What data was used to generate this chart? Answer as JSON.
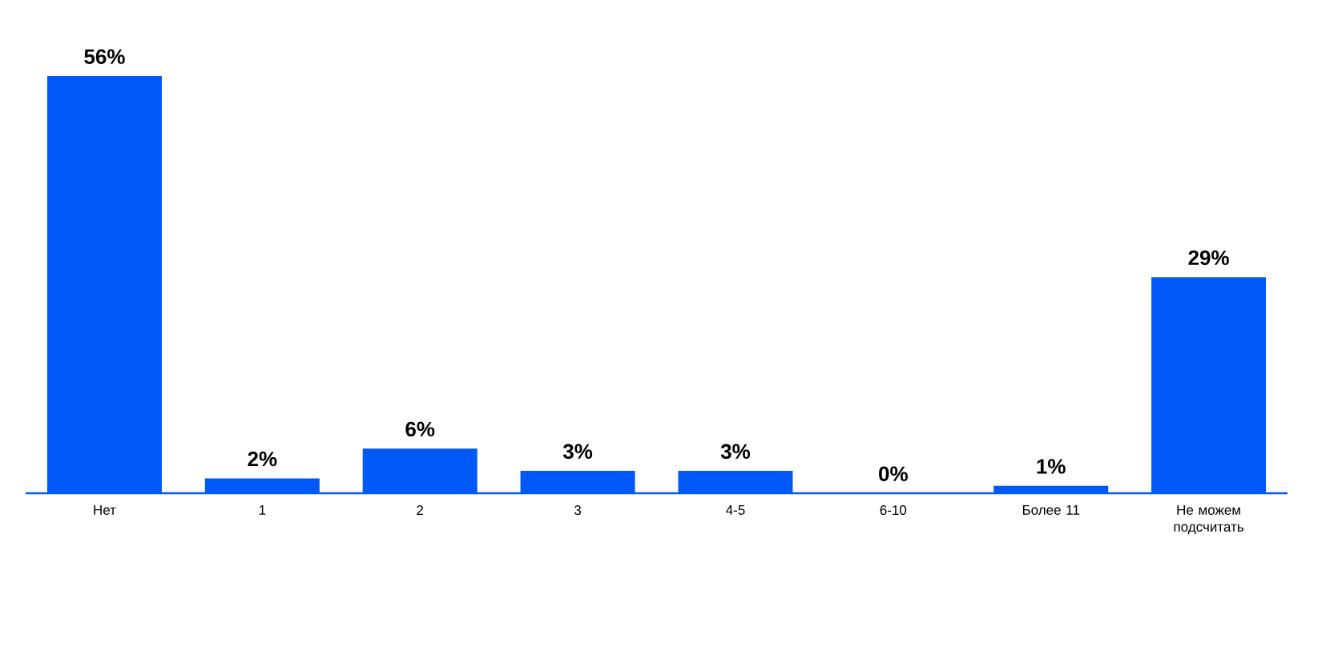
{
  "chart_data": {
    "type": "bar",
    "categories": [
      "Нет",
      "1",
      "2",
      "3",
      "4-5",
      "6-10",
      "Более 11",
      "Не можем подсчитать"
    ],
    "values": [
      56,
      2,
      6,
      3,
      3,
      0,
      1,
      29
    ],
    "value_labels": [
      "56%",
      "2%",
      "6%",
      "3%",
      "3%",
      "0%",
      "1%",
      "29%"
    ],
    "color": "#0059f6",
    "tick_labels": "x"
  }
}
